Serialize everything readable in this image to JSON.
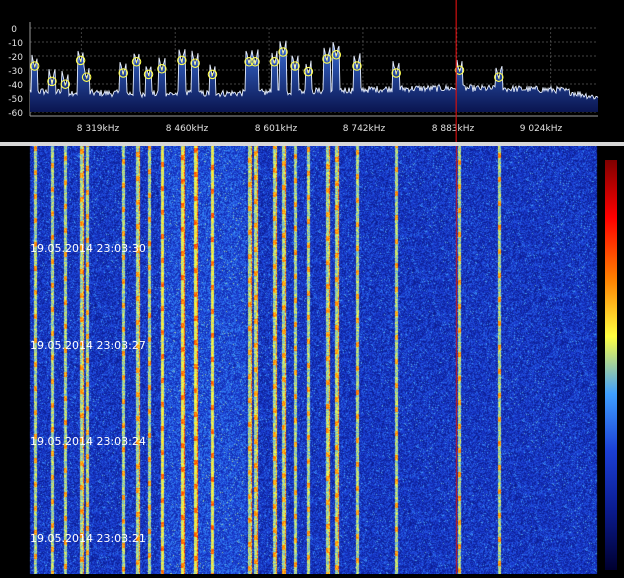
{
  "spectrum": {
    "y_labels": [
      "0",
      "-10",
      "-20",
      "-30",
      "-40",
      "-50",
      "-60"
    ],
    "y_range": [
      -60,
      0
    ],
    "freq_labels": [
      "8 319kHz",
      "8 460kHz",
      "8 601kHz",
      "8 742kHz",
      "8 883kHz",
      "9 024kHz"
    ],
    "freq_ticks_khz": [
      8319,
      8460,
      8601,
      8742,
      8883,
      9024
    ],
    "freq_range_khz": [
      8242,
      9095
    ],
    "cursor_khz": 8882,
    "noise_floor_db": -45,
    "peaks": [
      {
        "f": 8249,
        "db": -30
      },
      {
        "f": 8275,
        "db": -41
      },
      {
        "f": 8295,
        "db": -43
      },
      {
        "f": 8318,
        "db": -26
      },
      {
        "f": 8327,
        "db": -38
      },
      {
        "f": 8382,
        "db": -35
      },
      {
        "f": 8402,
        "db": -27
      },
      {
        "f": 8420,
        "db": -36
      },
      {
        "f": 8440,
        "db": -32
      },
      {
        "f": 8470,
        "db": -26
      },
      {
        "f": 8490,
        "db": -28
      },
      {
        "f": 8516,
        "db": -36
      },
      {
        "f": 8571,
        "db": -27
      },
      {
        "f": 8580,
        "db": -27
      },
      {
        "f": 8609,
        "db": -27
      },
      {
        "f": 8622,
        "db": -20
      },
      {
        "f": 8640,
        "db": -30
      },
      {
        "f": 8660,
        "db": -34
      },
      {
        "f": 8688,
        "db": -25
      },
      {
        "f": 8702,
        "db": -22
      },
      {
        "f": 8733,
        "db": -30
      },
      {
        "f": 8792,
        "db": -35
      },
      {
        "f": 8887,
        "db": -33
      },
      {
        "f": 8946,
        "db": -38
      }
    ]
  },
  "waterfall": {
    "timestamps": [
      "19.05.2014 23:03:30",
      "19.05.2014 23:03:27",
      "19.05.2014 23:03:24",
      "19.05.2014 23:03:21"
    ],
    "colormap": [
      "#000030",
      "#0a1a8c",
      "#1b3fd6",
      "#3fa0ff",
      "#ffff40",
      "#ff8000",
      "#ff0000",
      "#800000"
    ]
  },
  "colors": {
    "grid": "#5a5a5a",
    "trace": "#e8f0ff",
    "fill_top": "#3a6fd8",
    "fill_bottom": "#0a1550",
    "peak_marker": "#ffff50",
    "cursor": "#d01010",
    "labels": "#e0e0e0"
  }
}
